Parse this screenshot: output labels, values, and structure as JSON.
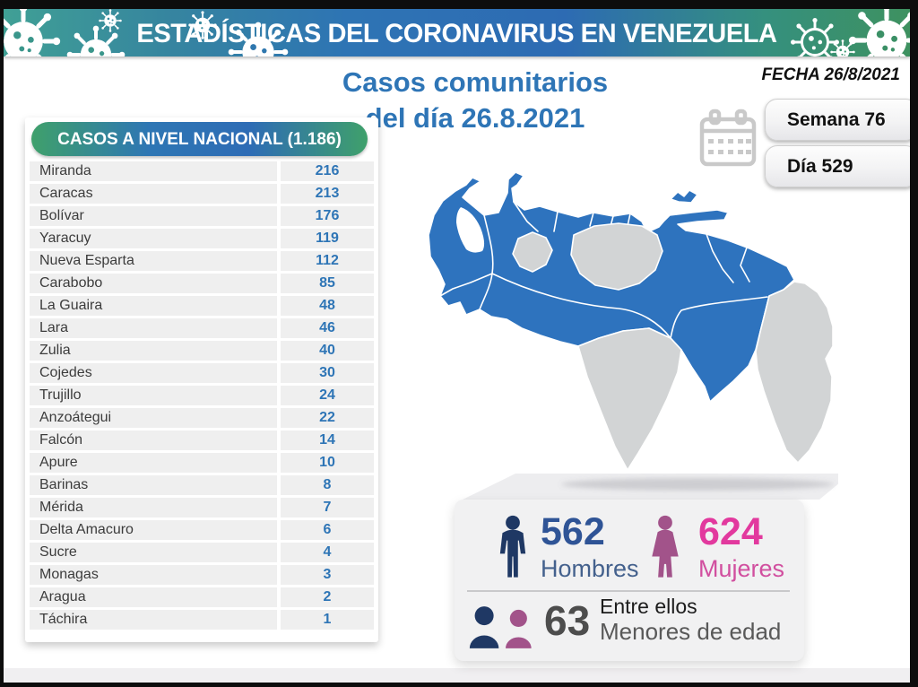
{
  "banner": {
    "title": "ESTADÍSTICAS DEL CORONAVIRUS EN VENEZUELA"
  },
  "date_label": "FECHA 26/8/2021",
  "badges": {
    "week": "Semana 76",
    "day": "Día 529"
  },
  "main_title": {
    "line1": "Casos comunitarios",
    "line2": "del día 26.8.2021"
  },
  "table": {
    "header": "CASOS A NIVEL NACIONAL (1.186)",
    "rows": [
      {
        "state": "Miranda",
        "cases": "216"
      },
      {
        "state": "Caracas",
        "cases": "213"
      },
      {
        "state": "Bolívar",
        "cases": "176"
      },
      {
        "state": "Yaracuy",
        "cases": "119"
      },
      {
        "state": "Nueva Esparta",
        "cases": "112"
      },
      {
        "state": "Carabobo",
        "cases": "85"
      },
      {
        "state": "La Guaira",
        "cases": "48"
      },
      {
        "state": "Lara",
        "cases": "46"
      },
      {
        "state": "Zulia",
        "cases": "40"
      },
      {
        "state": "Cojedes",
        "cases": "30"
      },
      {
        "state": "Trujillo",
        "cases": "24"
      },
      {
        "state": "Anzoátegui",
        "cases": "22"
      },
      {
        "state": "Falcón",
        "cases": "14"
      },
      {
        "state": "Apure",
        "cases": "10"
      },
      {
        "state": "Barinas",
        "cases": "8"
      },
      {
        "state": "Mérida",
        "cases": "7"
      },
      {
        "state": "Delta Amacuro",
        "cases": "6"
      },
      {
        "state": "Sucre",
        "cases": "4"
      },
      {
        "state": "Monagas",
        "cases": "3"
      },
      {
        "state": "Aragua",
        "cases": "2"
      },
      {
        "state": "Táchira",
        "cases": "1"
      }
    ]
  },
  "stats": {
    "men": {
      "value": "562",
      "label": "Hombres"
    },
    "women": {
      "value": "624",
      "label": "Mujeres"
    },
    "minors": {
      "value": "63",
      "label_line1": "Entre ellos",
      "label_line2": "Menores de edad"
    }
  },
  "map": {
    "active_color": "#2E73BE",
    "inactive_color": "#D2D4D5",
    "border_color": "#FFFFFF"
  },
  "colors": {
    "accent_blue": "#2E75B6",
    "banner_teal": "#40A095",
    "banner_blue": "#2D6BB3",
    "banner_green": "#3E9160",
    "men_navy": "#1F3864",
    "women_plum": "#A2538A",
    "women_pink": "#E2399E"
  },
  "chart_data": {
    "type": "table",
    "title": "Casos comunitarios del día 26.8.2021 — CASOS A NIVEL NACIONAL (1.186)",
    "categories": [
      "Miranda",
      "Caracas",
      "Bolívar",
      "Yaracuy",
      "Nueva Esparta",
      "Carabobo",
      "La Guaira",
      "Lara",
      "Zulia",
      "Cojedes",
      "Trujillo",
      "Anzoátegui",
      "Falcón",
      "Apure",
      "Barinas",
      "Mérida",
      "Delta Amacuro",
      "Sucre",
      "Monagas",
      "Aragua",
      "Táchira"
    ],
    "values": [
      216,
      213,
      176,
      119,
      112,
      85,
      48,
      46,
      40,
      30,
      24,
      22,
      14,
      10,
      8,
      7,
      6,
      4,
      3,
      2,
      1
    ],
    "totals": {
      "national": 1186,
      "men": 562,
      "women": 624,
      "minors": 63
    },
    "date": "26/8/2021",
    "week": 76,
    "day": 529
  }
}
